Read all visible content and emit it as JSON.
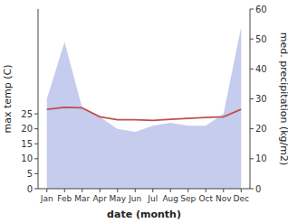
{
  "chart_data": {
    "type": "line",
    "categories": [
      "Jan",
      "Feb",
      "Mar",
      "Apr",
      "May",
      "Jun",
      "Jul",
      "Aug",
      "Sep",
      "Oct",
      "Nov",
      "Dec"
    ],
    "series": [
      {
        "type": "area",
        "color": "#c5ccee",
        "axis": "y2",
        "values": [
          30,
          49,
          27,
          24,
          20,
          19,
          21,
          22,
          21,
          21,
          25,
          54
        ]
      },
      {
        "type": "line",
        "color": "#c0504d",
        "values": [
          26.5,
          27.2,
          27.0,
          24.0,
          23.0,
          23.0,
          22.8,
          23.2,
          23.5,
          23.8,
          24.0,
          26.5
        ]
      }
    ],
    "xlabel": "date (month)",
    "ylabel": "max temp (C)",
    "y2label": "med. precipitation (kg/m2)",
    "ylim": [
      0,
      60
    ],
    "yticks": [
      0,
      5,
      10,
      15,
      20,
      25
    ],
    "y2lim": [
      0,
      60
    ],
    "y2ticks": [
      0,
      10,
      20,
      30,
      40,
      50,
      60
    ],
    "grid": false
  }
}
